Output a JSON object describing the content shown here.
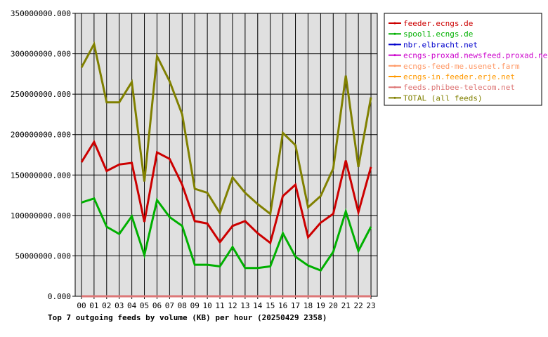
{
  "chart_data": {
    "type": "line",
    "title": "Top 7 outgoing feeds by volume (KB) per hour (20250429 2358)",
    "categories": [
      "00",
      "01",
      "02",
      "03",
      "04",
      "05",
      "06",
      "07",
      "08",
      "09",
      "10",
      "11",
      "12",
      "13",
      "14",
      "15",
      "16",
      "17",
      "18",
      "19",
      "20",
      "21",
      "22",
      "23"
    ],
    "y_tick_labels": [
      "0.000",
      "50000000.000",
      "100000000.000",
      "150000000.000",
      "200000000.000",
      "250000000.000",
      "300000000.000",
      "350000000.000"
    ],
    "ylim": [
      0,
      350000000
    ],
    "grid": true,
    "legend_position": "right",
    "series": [
      {
        "name": "feeder.ecngs.de",
        "color": "#cc0000",
        "values": [
          166000000,
          191000000,
          155000000,
          163000000,
          165000000,
          92000000,
          178000000,
          170000000,
          138000000,
          93000000,
          90000000,
          67000000,
          87000000,
          93000000,
          78000000,
          66000000,
          124000000,
          138000000,
          73000000,
          91000000,
          102000000,
          168000000,
          104000000,
          160000000
        ]
      },
      {
        "name": "spool1.ecngs.de",
        "color": "#00b000",
        "values": [
          116000000,
          121000000,
          86000000,
          77000000,
          99000000,
          51000000,
          119000000,
          98000000,
          87000000,
          39000000,
          39000000,
          37000000,
          61000000,
          35000000,
          35000000,
          37000000,
          78000000,
          49000000,
          38000000,
          32000000,
          55000000,
          105000000,
          56000000,
          86000000
        ]
      },
      {
        "name": "nbr.elbracht.net",
        "color": "#0000cc",
        "values": [
          0,
          0,
          0,
          0,
          0,
          0,
          0,
          0,
          0,
          0,
          0,
          0,
          0,
          0,
          0,
          0,
          0,
          0,
          0,
          0,
          0,
          0,
          0,
          0
        ]
      },
      {
        "name": "ecngs-proxad.newsfeed.proxad.net",
        "color": "#cc00cc",
        "values": [
          0,
          0,
          0,
          0,
          0,
          0,
          0,
          0,
          0,
          0,
          0,
          0,
          0,
          0,
          0,
          0,
          0,
          0,
          0,
          0,
          0,
          0,
          0,
          0
        ]
      },
      {
        "name": "ecngs-feed-me.usenet.farm",
        "color": "#ff9966",
        "values": [
          0,
          0,
          0,
          0,
          0,
          0,
          0,
          0,
          0,
          0,
          0,
          0,
          0,
          0,
          0,
          0,
          0,
          0,
          0,
          0,
          0,
          0,
          0,
          0
        ]
      },
      {
        "name": "ecngs-in.feeder.erje.net",
        "color": "#ff9900",
        "values": [
          0,
          0,
          0,
          0,
          0,
          0,
          0,
          0,
          0,
          0,
          0,
          0,
          0,
          0,
          0,
          0,
          0,
          0,
          0,
          0,
          0,
          0,
          0,
          0
        ]
      },
      {
        "name": "feeds.phibee-telecom.net",
        "color": "#dd7777",
        "values": [
          0,
          0,
          0,
          0,
          0,
          0,
          0,
          0,
          0,
          0,
          0,
          0,
          0,
          0,
          0,
          0,
          0,
          0,
          0,
          0,
          0,
          0,
          0,
          0
        ]
      },
      {
        "name": "TOTAL (all feeds)",
        "color": "#808000",
        "values": [
          283000000,
          312000000,
          240000000,
          240000000,
          265000000,
          142000000,
          297000000,
          266000000,
          225000000,
          133000000,
          128000000,
          103000000,
          147000000,
          128000000,
          114000000,
          102000000,
          202000000,
          187000000,
          110000000,
          124000000,
          158000000,
          273000000,
          160000000,
          246000000
        ]
      }
    ]
  }
}
